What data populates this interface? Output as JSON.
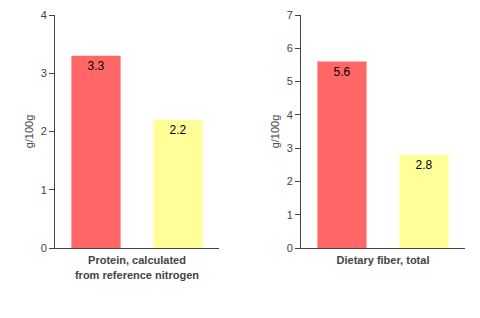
{
  "chart_data": [
    {
      "type": "bar",
      "title": "Protein, calculated\nfrom reference nitrogen",
      "y_label": "g/100g",
      "categories": [
        null,
        null
      ],
      "values": [
        3.3,
        2.2
      ],
      "colors": [
        "#FF6666",
        "#FFFF99"
      ],
      "ylim": [
        0,
        4
      ],
      "yticks": [
        0,
        1,
        2,
        3,
        4
      ],
      "grid": false,
      "data_labels": true,
      "tick_labels": "y"
    },
    {
      "type": "bar",
      "title": "Dietary fiber, total",
      "y_label": "g/100g",
      "categories": [
        null,
        null
      ],
      "values": [
        5.6,
        2.8
      ],
      "colors": [
        "#FF6666",
        "#FFFF99"
      ],
      "ylim": [
        0,
        7
      ],
      "yticks": [
        0,
        1,
        2,
        3,
        4,
        5,
        6,
        7
      ],
      "grid": false,
      "data_labels": true,
      "tick_labels": "y"
    }
  ]
}
